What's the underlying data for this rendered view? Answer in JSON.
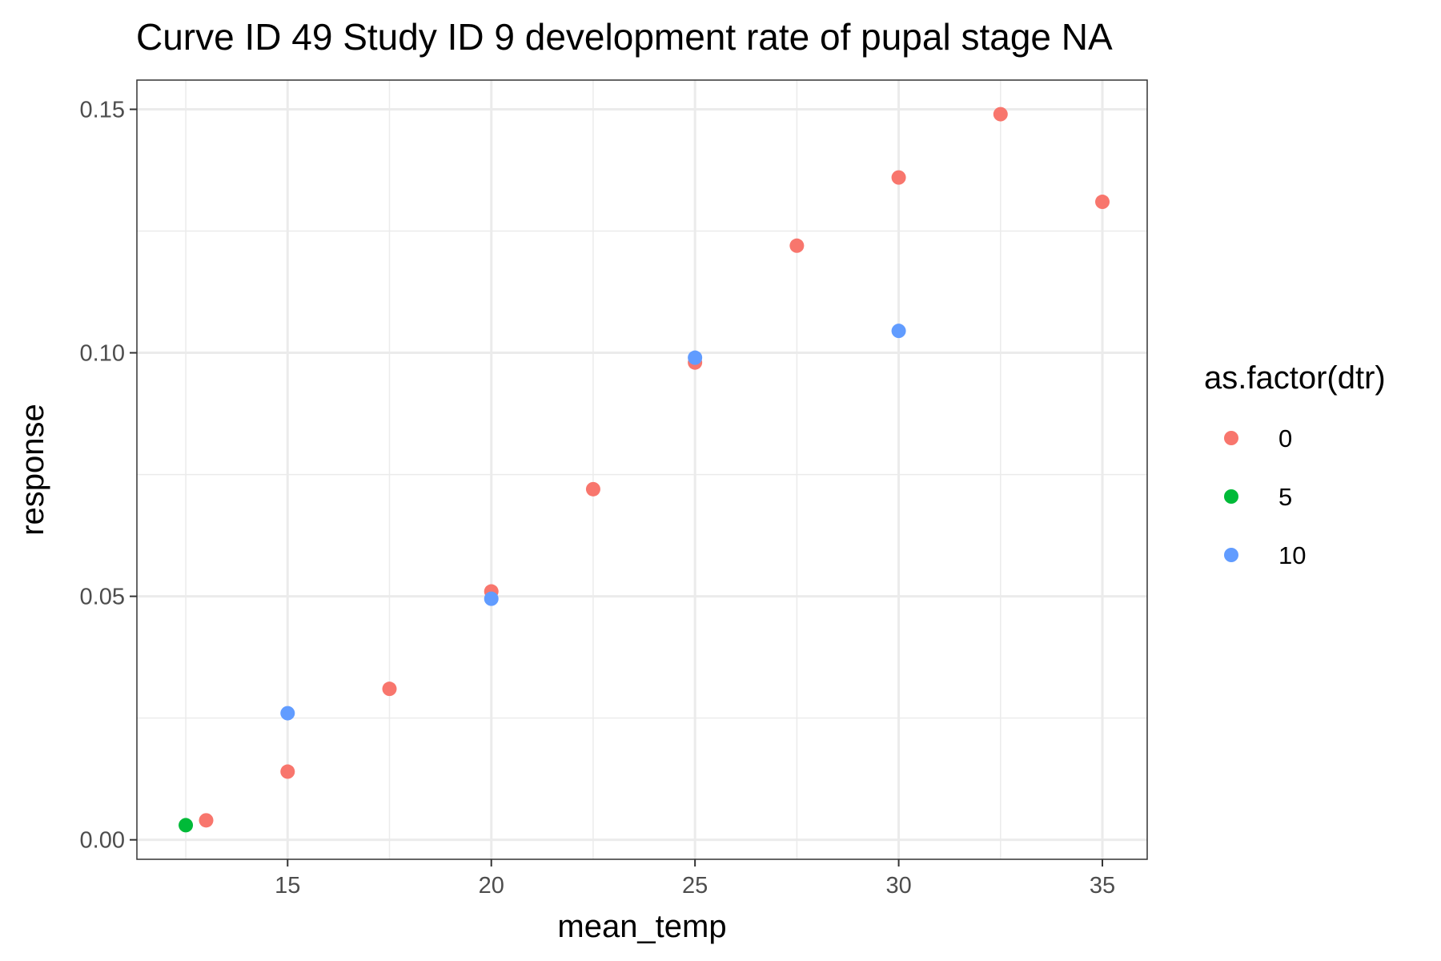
{
  "chart_data": {
    "type": "scatter",
    "title": "Curve ID 49 Study ID 9 development rate of pupal stage NA",
    "xlabel": "mean_temp",
    "ylabel": "response",
    "xlim": [
      11.3,
      36.1
    ],
    "ylim": [
      -0.004,
      0.156
    ],
    "x_ticks": [
      15,
      20,
      25,
      30,
      35
    ],
    "x_tick_labels": [
      "15",
      "20",
      "25",
      "30",
      "35"
    ],
    "x_minor_ticks": [
      12.5,
      17.5,
      22.5,
      27.5,
      32.5
    ],
    "y_ticks": [
      0,
      0.05,
      0.1,
      0.15
    ],
    "y_tick_labels": [
      "0.00",
      "0.05",
      "0.10",
      "0.15"
    ],
    "y_minor_ticks": [
      0.025,
      0.075,
      0.125
    ],
    "grid": true,
    "legend": {
      "title": "as.factor(dtr)",
      "placement": "right"
    },
    "series": [
      {
        "name": "0",
        "color": "#F8766D",
        "points": [
          {
            "x": 13,
            "y": 0.004
          },
          {
            "x": 15,
            "y": 0.014
          },
          {
            "x": 17.5,
            "y": 0.031
          },
          {
            "x": 20,
            "y": 0.051
          },
          {
            "x": 22.5,
            "y": 0.072
          },
          {
            "x": 25,
            "y": 0.098
          },
          {
            "x": 27.5,
            "y": 0.122
          },
          {
            "x": 30,
            "y": 0.136
          },
          {
            "x": 32.5,
            "y": 0.149
          },
          {
            "x": 35,
            "y": 0.131
          }
        ]
      },
      {
        "name": "5",
        "color": "#00BA38",
        "points": [
          {
            "x": 12.5,
            "y": 0.003
          }
        ]
      },
      {
        "name": "10",
        "color": "#619CFF",
        "points": [
          {
            "x": 15,
            "y": 0.026
          },
          {
            "x": 20,
            "y": 0.0495
          },
          {
            "x": 25,
            "y": 0.099
          },
          {
            "x": 30,
            "y": 0.1045
          }
        ]
      }
    ]
  }
}
